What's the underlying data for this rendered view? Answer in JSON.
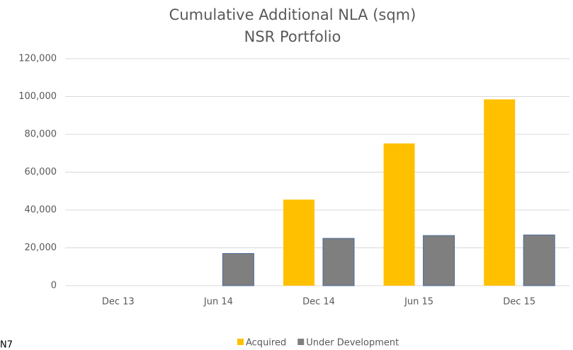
{
  "chart_data": {
    "type": "bar",
    "title": [
      "Cumulative Additional NLA (sqm)",
      "NSR Portfolio"
    ],
    "categories": [
      "Dec 13",
      "Jun 14",
      "Dec 14",
      "Jun 15",
      "Dec 15"
    ],
    "series": [
      {
        "name": "Acquired",
        "color": "#ffc000",
        "values": [
          0,
          0,
          45500,
          75200,
          98500
        ]
      },
      {
        "name": "Under Development",
        "color": "#7f7f7f",
        "values": [
          0,
          17000,
          25000,
          26500,
          26800
        ]
      }
    ],
    "ylim": [
      0,
      120000
    ],
    "yticks": [
      0,
      {
        "value": 20000,
        "label": "20,000"
      },
      {
        "value": 40000,
        "label": "40,000"
      },
      {
        "value": 60000,
        "label": "60,000"
      },
      {
        "value": 80000,
        "label": "80,000"
      },
      {
        "value": 100000,
        "label": "100,000"
      },
      {
        "value": 120000,
        "label": "120,000"
      }
    ],
    "grid": true,
    "legend": "bottom",
    "note": "N7"
  }
}
